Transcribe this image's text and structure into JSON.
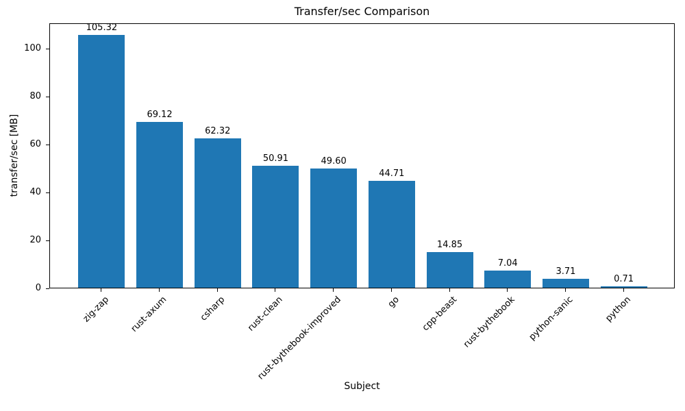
{
  "chart_data": {
    "type": "bar",
    "title": "Transfer/sec Comparison",
    "xlabel": "Subject",
    "ylabel": "transfer/sec [MB]",
    "categories": [
      "zig-zap",
      "rust-axum",
      "csharp",
      "rust-clean",
      "rust-bythebook-improved",
      "go",
      "cpp-beast",
      "rust-bythebook",
      "python-sanic",
      "python"
    ],
    "values": [
      105.32,
      69.12,
      62.32,
      50.91,
      49.6,
      44.71,
      14.85,
      7.04,
      3.71,
      0.71
    ],
    "value_labels": [
      "105.32",
      "69.12",
      "62.32",
      "50.91",
      "49.60",
      "44.71",
      "14.85",
      "7.04",
      "3.71",
      "0.71"
    ],
    "yticks": [
      0,
      20,
      40,
      60,
      80,
      100
    ],
    "ylim": [
      0,
      110.59
    ],
    "bar_color": "#1f77b4",
    "axis_color": "#000000",
    "background_color": "#ffffff",
    "grid": false,
    "legend": null,
    "x_tick_rotation_deg": 45
  }
}
